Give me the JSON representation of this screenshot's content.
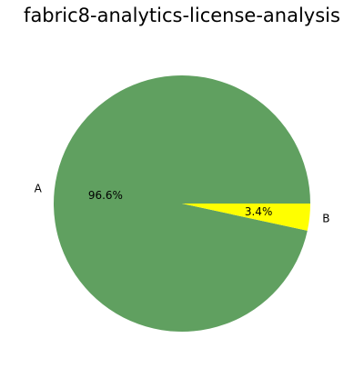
{
  "chart_data": {
    "type": "pie",
    "title": "fabric8-analytics-license-analysis",
    "slices": [
      {
        "label": "A",
        "value": 96.6,
        "pct_label": "96.6%",
        "color": "#60a060"
      },
      {
        "label": "B",
        "value": 3.4,
        "pct_label": "3.4%",
        "color": "#ffff00"
      }
    ],
    "start_angle_deg": 0,
    "direction": "counterclockwise"
  }
}
